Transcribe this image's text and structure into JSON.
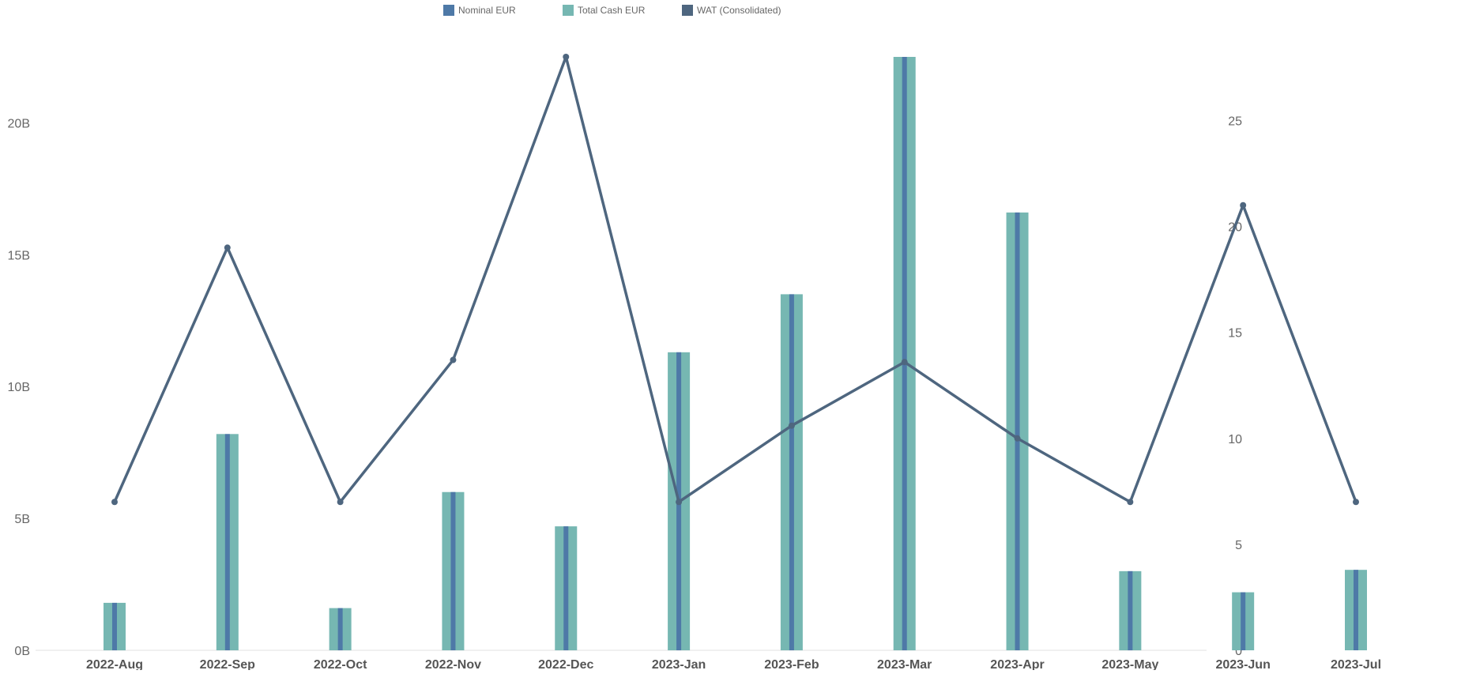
{
  "chart_data": {
    "type": "bar",
    "categories": [
      "2022-Aug",
      "2022-Sep",
      "2022-Oct",
      "2022-Nov",
      "2022-Dec",
      "2023-Jan",
      "2023-Feb",
      "2023-Mar",
      "2023-Apr",
      "2023-May",
      "2023-Jun",
      "2023-Jul"
    ],
    "series": [
      {
        "name": "Nominal EUR",
        "kind": "bar",
        "axis": "left",
        "color": "#4E79A7",
        "values": [
          1.8,
          8.2,
          1.6,
          6.0,
          4.7,
          11.3,
          13.5,
          22.5,
          16.6,
          3.0,
          2.2,
          3.05
        ]
      },
      {
        "name": "Total Cash EUR",
        "kind": "bar",
        "axis": "left",
        "color": "#76B7B2",
        "values": [
          1.8,
          8.2,
          1.6,
          6.0,
          4.7,
          11.3,
          13.5,
          22.5,
          16.6,
          3.0,
          2.2,
          3.05
        ]
      },
      {
        "name": "WAT (Consolidated)",
        "kind": "line",
        "axis": "right",
        "color": "#4E667F",
        "values": [
          7,
          19,
          7,
          13.7,
          28,
          7,
          10.6,
          13.6,
          10,
          7,
          21,
          7
        ]
      }
    ],
    "left_axis": {
      "ylim": [
        0,
        22.5
      ],
      "ticks": [
        0,
        5,
        10,
        15,
        20
      ],
      "tick_labels": [
        "0B",
        "5B",
        "10B",
        "15B",
        "20B"
      ]
    },
    "right_axis": {
      "ylim": [
        0,
        28
      ],
      "ticks": [
        0,
        5,
        10,
        15,
        20,
        25
      ],
      "tick_labels": [
        "0",
        "5",
        "10",
        "15",
        "20",
        "25"
      ]
    },
    "title": "",
    "xlabel": "",
    "ylabel": "",
    "legend_position": "top-center",
    "grid": false
  }
}
